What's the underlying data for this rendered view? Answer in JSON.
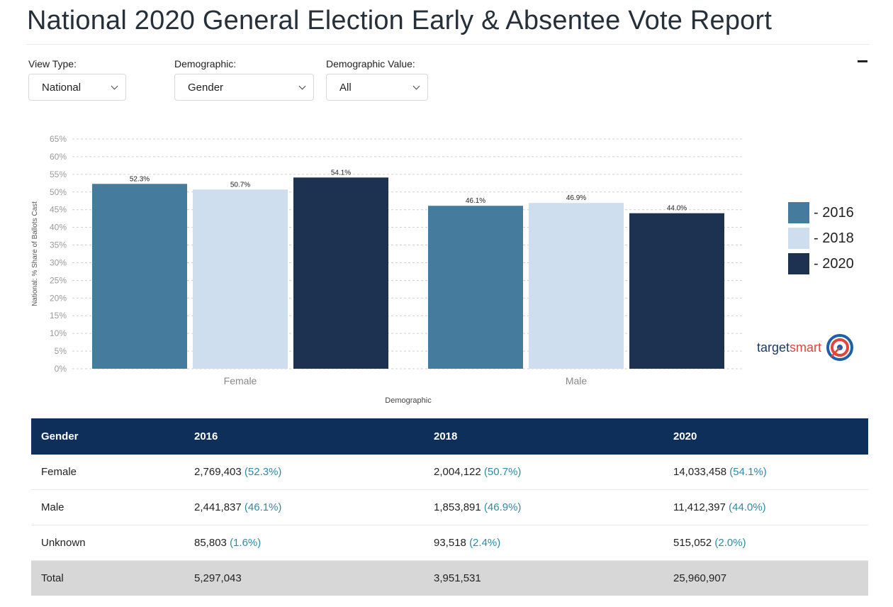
{
  "title": "National 2020 General Election Early & Absentee Vote Report",
  "controls": {
    "view_type": {
      "label": "View Type:",
      "value": "National"
    },
    "demographic": {
      "label": "Demographic:",
      "value": "Gender"
    },
    "demographic_value": {
      "label": "Demographic Value:",
      "value": "All"
    }
  },
  "chart_data": {
    "type": "bar",
    "categories": [
      "Female",
      "Male"
    ],
    "series": [
      {
        "name": "2016",
        "values": [
          52.3,
          46.1
        ],
        "labels": [
          "52.3%",
          "46.1%"
        ],
        "color": "#457b9d"
      },
      {
        "name": "2018",
        "values": [
          50.7,
          46.9
        ],
        "labels": [
          "50.7%",
          "46.9%"
        ],
        "color": "#cfdeee"
      },
      {
        "name": "2020",
        "values": [
          54.1,
          44.0
        ],
        "labels": [
          "54.1%",
          "44.0%"
        ],
        "color": "#1d3250"
      }
    ],
    "ylim": [
      0,
      65
    ],
    "yticks": [
      "0%",
      "5%",
      "10%",
      "15%",
      "20%",
      "25%",
      "30%",
      "35%",
      "40%",
      "45%",
      "50%",
      "55%",
      "60%",
      "65%"
    ],
    "xlabel": "Demographic",
    "ylabel": "National: % Share of Ballots Cast",
    "grid": true,
    "legend_position": "right"
  },
  "legend": [
    {
      "label": "- 2016",
      "color": "#457b9d"
    },
    {
      "label": "- 2018",
      "color": "#cfdeee"
    },
    {
      "label": "- 2020",
      "color": "#1d3250"
    }
  ],
  "logo": {
    "text_a": "target",
    "text_b": "smart"
  },
  "table": {
    "headers": [
      "Gender",
      "2016",
      "2018",
      "2020"
    ],
    "rows": [
      {
        "label": "Female",
        "cells": [
          {
            "count": "2,769,403",
            "pct": "(52.3%)"
          },
          {
            "count": "2,004,122",
            "pct": "(50.7%)"
          },
          {
            "count": "14,033,458",
            "pct": "(54.1%)"
          }
        ]
      },
      {
        "label": "Male",
        "cells": [
          {
            "count": "2,441,837",
            "pct": "(46.1%)"
          },
          {
            "count": "1,853,891",
            "pct": "(46.9%)"
          },
          {
            "count": "11,412,397",
            "pct": "(44.0%)"
          }
        ]
      },
      {
        "label": "Unknown",
        "cells": [
          {
            "count": "85,803",
            "pct": "(1.6%)"
          },
          {
            "count": "93,518",
            "pct": "(2.4%)"
          },
          {
            "count": "515,052",
            "pct": "(2.0%)"
          }
        ]
      }
    ],
    "total": {
      "label": "Total",
      "values": [
        "5,297,043",
        "3,951,531",
        "25,960,907"
      ]
    }
  }
}
